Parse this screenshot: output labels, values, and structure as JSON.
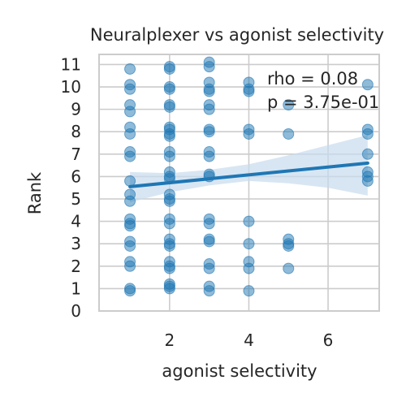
{
  "chart_data": {
    "type": "scatter",
    "title": "Neuralplexer vs agonist selectivity",
    "xlabel": "agonist selectivity",
    "ylabel": "Rank",
    "xlim": [
      0.22,
      7.29
    ],
    "ylim": [
      0,
      11.45
    ],
    "xticks": [
      2,
      4,
      6
    ],
    "yticks": [
      0,
      1,
      2,
      3,
      4,
      5,
      6,
      7,
      8,
      9,
      10,
      11
    ],
    "grid": true,
    "annotations": [
      "rho = 0.08",
      "p = 3.75e-01"
    ],
    "regression": {
      "x": [
        1,
        7
      ],
      "y": [
        5.55,
        6.6
      ]
    },
    "confidence_band": {
      "x": [
        1,
        2,
        3,
        4,
        5,
        6,
        7
      ],
      "lower": [
        4.85,
        5.3,
        5.6,
        5.8,
        5.7,
        5.5,
        5.15
      ],
      "upper": [
        6.2,
        6.15,
        6.3,
        6.55,
        6.95,
        7.4,
        7.85
      ]
    },
    "points": [
      {
        "x": 1,
        "y": 10.8
      },
      {
        "x": 1,
        "y": 10.1
      },
      {
        "x": 1,
        "y": 9.9
      },
      {
        "x": 1,
        "y": 9.2
      },
      {
        "x": 1,
        "y": 8.9
      },
      {
        "x": 1,
        "y": 8.2
      },
      {
        "x": 1,
        "y": 7.9
      },
      {
        "x": 1,
        "y": 7.1
      },
      {
        "x": 1,
        "y": 6.9
      },
      {
        "x": 1,
        "y": 5.8
      },
      {
        "x": 1,
        "y": 5.2
      },
      {
        "x": 1,
        "y": 4.9
      },
      {
        "x": 1,
        "y": 4.1
      },
      {
        "x": 1,
        "y": 3.9
      },
      {
        "x": 1,
        "y": 3.8
      },
      {
        "x": 1,
        "y": 3.1
      },
      {
        "x": 1,
        "y": 2.9
      },
      {
        "x": 1,
        "y": 2.2
      },
      {
        "x": 1,
        "y": 2.0
      },
      {
        "x": 1,
        "y": 1.0
      },
      {
        "x": 1,
        "y": 0.9
      },
      {
        "x": 2,
        "y": 10.9
      },
      {
        "x": 2,
        "y": 10.8
      },
      {
        "x": 2,
        "y": 10.0
      },
      {
        "x": 2,
        "y": 9.9
      },
      {
        "x": 2,
        "y": 9.2
      },
      {
        "x": 2,
        "y": 9.1
      },
      {
        "x": 2,
        "y": 8.2
      },
      {
        "x": 2,
        "y": 8.1
      },
      {
        "x": 2,
        "y": 7.9
      },
      {
        "x": 2,
        "y": 7.8
      },
      {
        "x": 2,
        "y": 7.1
      },
      {
        "x": 2,
        "y": 6.9
      },
      {
        "x": 2,
        "y": 6.2
      },
      {
        "x": 2,
        "y": 6.0
      },
      {
        "x": 2,
        "y": 5.9
      },
      {
        "x": 2,
        "y": 5.2
      },
      {
        "x": 2,
        "y": 5.0
      },
      {
        "x": 2,
        "y": 4.9
      },
      {
        "x": 2,
        "y": 4.1
      },
      {
        "x": 2,
        "y": 3.9
      },
      {
        "x": 2,
        "y": 3.2
      },
      {
        "x": 2,
        "y": 3.0
      },
      {
        "x": 2,
        "y": 2.9
      },
      {
        "x": 2,
        "y": 2.2
      },
      {
        "x": 2,
        "y": 2.0
      },
      {
        "x": 2,
        "y": 1.9
      },
      {
        "x": 2,
        "y": 1.2
      },
      {
        "x": 2,
        "y": 1.1
      },
      {
        "x": 2,
        "y": 1.0
      },
      {
        "x": 3,
        "y": 11.1
      },
      {
        "x": 3,
        "y": 10.9
      },
      {
        "x": 3,
        "y": 10.2
      },
      {
        "x": 3,
        "y": 9.9
      },
      {
        "x": 3,
        "y": 9.8
      },
      {
        "x": 3,
        "y": 9.2
      },
      {
        "x": 3,
        "y": 9.0
      },
      {
        "x": 3,
        "y": 8.1
      },
      {
        "x": 3,
        "y": 8.0
      },
      {
        "x": 3,
        "y": 7.1
      },
      {
        "x": 3,
        "y": 6.9
      },
      {
        "x": 3,
        "y": 6.1
      },
      {
        "x": 3,
        "y": 6.0
      },
      {
        "x": 3,
        "y": 4.1
      },
      {
        "x": 3,
        "y": 3.9
      },
      {
        "x": 3,
        "y": 3.2
      },
      {
        "x": 3,
        "y": 3.1
      },
      {
        "x": 3,
        "y": 2.1
      },
      {
        "x": 3,
        "y": 1.9
      },
      {
        "x": 3,
        "y": 1.1
      },
      {
        "x": 3,
        "y": 0.9
      },
      {
        "x": 4,
        "y": 10.2
      },
      {
        "x": 4,
        "y": 9.9
      },
      {
        "x": 4,
        "y": 9.8
      },
      {
        "x": 4,
        "y": 8.1
      },
      {
        "x": 4,
        "y": 7.9
      },
      {
        "x": 4,
        "y": 4.0
      },
      {
        "x": 4,
        "y": 3.0
      },
      {
        "x": 4,
        "y": 2.2
      },
      {
        "x": 4,
        "y": 1.9
      },
      {
        "x": 4,
        "y": 0.9
      },
      {
        "x": 5,
        "y": 9.2
      },
      {
        "x": 5,
        "y": 7.9
      },
      {
        "x": 5,
        "y": 3.2
      },
      {
        "x": 5,
        "y": 3.0
      },
      {
        "x": 5,
        "y": 2.9
      },
      {
        "x": 5,
        "y": 1.9
      },
      {
        "x": 7,
        "y": 10.1
      },
      {
        "x": 7,
        "y": 8.1
      },
      {
        "x": 7,
        "y": 7.9
      },
      {
        "x": 7,
        "y": 7.0
      },
      {
        "x": 7,
        "y": 6.2
      },
      {
        "x": 7,
        "y": 6.0
      },
      {
        "x": 7,
        "y": 5.8
      }
    ]
  },
  "colors": {
    "point": "#1f77b4",
    "line": "#1f77b4",
    "band": "#c8dbee",
    "grid": "#cccccc",
    "text": "#262626"
  }
}
